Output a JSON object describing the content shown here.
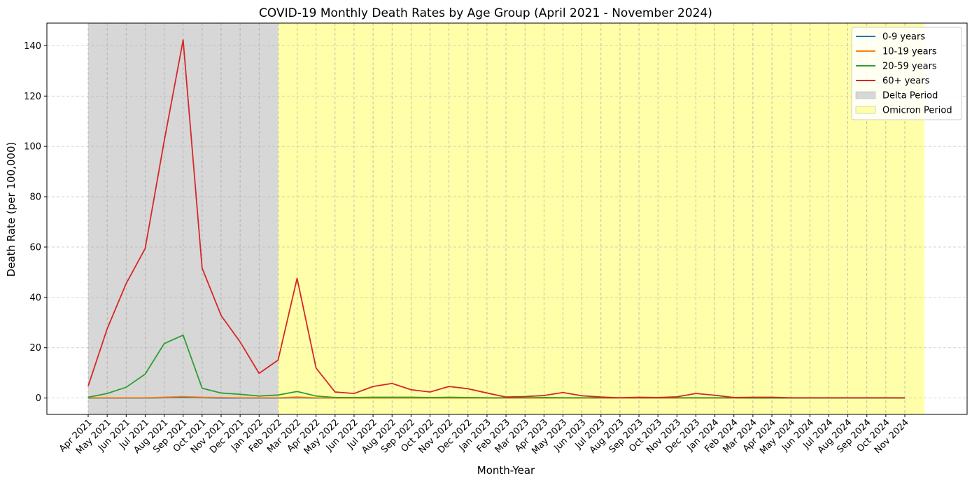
{
  "chart_data": {
    "type": "line",
    "title": "COVID-19 Monthly Death Rates by Age Group (April 2021 - November 2024)",
    "xlabel": "Month-Year",
    "ylabel": "Death Rate (per 100,000)",
    "ylim": [
      -6.5,
      149
    ],
    "yticks": [
      0,
      20,
      40,
      60,
      80,
      100,
      120,
      140
    ],
    "grid": true,
    "legend_position": "top-right",
    "categories": [
      "Apr 2021",
      "May 2021",
      "Jun 2021",
      "Jul 2021",
      "Aug 2021",
      "Sep 2021",
      "Oct 2021",
      "Nov 2021",
      "Dec 2021",
      "Jan 2022",
      "Feb 2022",
      "Mar 2022",
      "Apr 2022",
      "May 2022",
      "Jun 2022",
      "Jul 2022",
      "Aug 2022",
      "Sep 2022",
      "Oct 2022",
      "Nov 2022",
      "Dec 2022",
      "Jan 2023",
      "Feb 2023",
      "Mar 2023",
      "Apr 2023",
      "May 2023",
      "Jun 2023",
      "Jul 2023",
      "Aug 2023",
      "Sep 2023",
      "Oct 2023",
      "Nov 2023",
      "Dec 2023",
      "Jan 2024",
      "Feb 2024",
      "Mar 2024",
      "Apr 2024",
      "May 2024",
      "Jun 2024",
      "Jul 2024",
      "Aug 2024",
      "Sep 2024",
      "Oct 2024",
      "Nov 2024"
    ],
    "series": [
      {
        "name": "0-9 years",
        "color": "#1f77b4",
        "values": [
          0,
          0,
          0,
          0,
          0.1,
          0.2,
          0.1,
          0,
          0,
          0,
          0,
          0.1,
          0,
          0,
          0,
          0,
          0,
          0,
          0,
          0,
          0,
          0,
          0,
          0,
          0,
          0,
          0,
          0,
          0,
          0,
          0,
          0,
          0,
          0,
          0,
          0,
          0,
          0,
          0,
          0,
          0,
          0,
          0,
          0
        ]
      },
      {
        "name": "10-19 years",
        "color": "#ff7f0e",
        "values": [
          0.1,
          0.1,
          0.1,
          0.1,
          0.3,
          0.6,
          0.3,
          0.2,
          0.1,
          0.1,
          0.1,
          0.4,
          0.1,
          0,
          0,
          0,
          0,
          0,
          0,
          0,
          0,
          0,
          0,
          0,
          0,
          0,
          0,
          0,
          0,
          0,
          0,
          0,
          0,
          0,
          0,
          0,
          0,
          0,
          0,
          0,
          0,
          0,
          0,
          0
        ]
      },
      {
        "name": "20-59 years",
        "color": "#2ca02c",
        "values": [
          0.3,
          1.8,
          4.3,
          9.5,
          21.6,
          25,
          3.9,
          2,
          1.5,
          0.8,
          1.2,
          2.6,
          0.8,
          0.2,
          0.2,
          0.3,
          0.3,
          0.3,
          0.2,
          0.3,
          0.2,
          0.1,
          0.1,
          0.1,
          0.2,
          0.1,
          0.1,
          0.1,
          0.1,
          0.1,
          0.1,
          0.1,
          0.1,
          0.1,
          0.1,
          0,
          0,
          0,
          0,
          0,
          0,
          0,
          0,
          0
        ]
      },
      {
        "name": "60+ years",
        "color": "#d62728",
        "values": [
          4.8,
          27.5,
          45.5,
          59.4,
          102,
          142.3,
          51.6,
          32.8,
          22.3,
          9.8,
          15.1,
          47.6,
          11.9,
          2.4,
          1.8,
          4.6,
          5.8,
          3.3,
          2.4,
          4.6,
          3.7,
          2,
          0.4,
          0.6,
          1,
          2.2,
          0.9,
          0.4,
          0.1,
          0.3,
          0.2,
          0.5,
          1.8,
          1.1,
          0.2,
          0.3,
          0.3,
          0.1,
          0.1,
          0.1,
          0.1,
          0.1,
          0.1,
          0.1
        ]
      }
    ],
    "periods": [
      {
        "name": "Delta Period",
        "start": "Apr 2021",
        "end": "Feb 2022",
        "color": "#d7d7d7"
      },
      {
        "name": "Omicron Period",
        "start": "Feb 2022",
        "end": "Nov 2024",
        "color": "#ffffaa"
      }
    ]
  }
}
